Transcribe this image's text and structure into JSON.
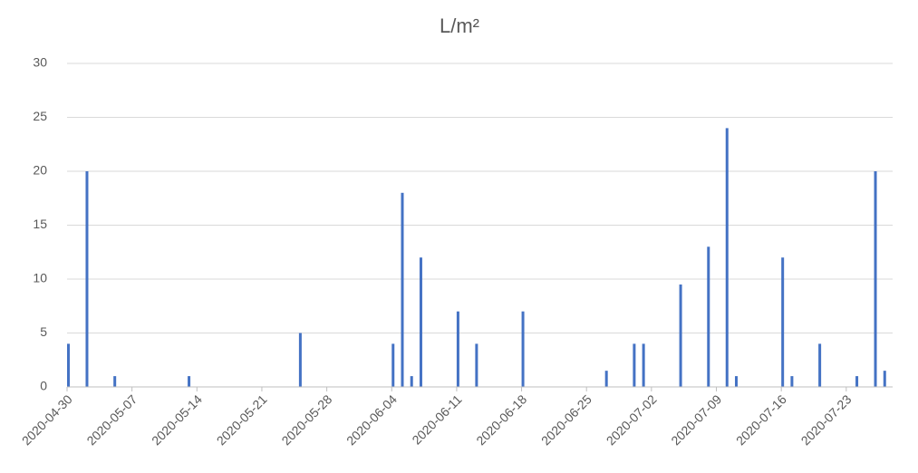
{
  "chart_data": {
    "type": "bar",
    "title": "L/m²",
    "x": [
      "2020-04-30",
      "2020-05-02",
      "2020-05-05",
      "2020-05-13",
      "2020-05-25",
      "2020-06-04",
      "2020-06-05",
      "2020-06-06",
      "2020-06-07",
      "2020-06-11",
      "2020-06-13",
      "2020-06-18",
      "2020-06-27",
      "2020-06-30",
      "2020-07-01",
      "2020-07-05",
      "2020-07-08",
      "2020-07-10",
      "2020-07-11",
      "2020-07-16",
      "2020-07-17",
      "2020-07-20",
      "2020-07-24",
      "2020-07-26",
      "2020-07-27"
    ],
    "values": [
      4,
      20,
      1,
      1,
      5,
      4,
      18,
      1,
      12,
      7,
      4,
      7,
      1.5,
      4,
      4,
      9.5,
      13,
      24,
      1,
      12,
      1,
      4,
      1,
      20,
      1.5
    ],
    "color": "#4472c4",
    "xlim": [
      "2020-04-30",
      "2020-07-28"
    ],
    "xticks": [
      "2020-04-30",
      "2020-05-07",
      "2020-05-14",
      "2020-05-21",
      "2020-05-28",
      "2020-06-04",
      "2020-06-11",
      "2020-06-18",
      "2020-06-25",
      "2020-07-02",
      "2020-07-09",
      "2020-07-16",
      "2020-07-23"
    ],
    "ylim": [
      0,
      30
    ],
    "yticks": [
      0,
      5,
      10,
      15,
      20,
      25,
      30
    ],
    "grid": true
  }
}
